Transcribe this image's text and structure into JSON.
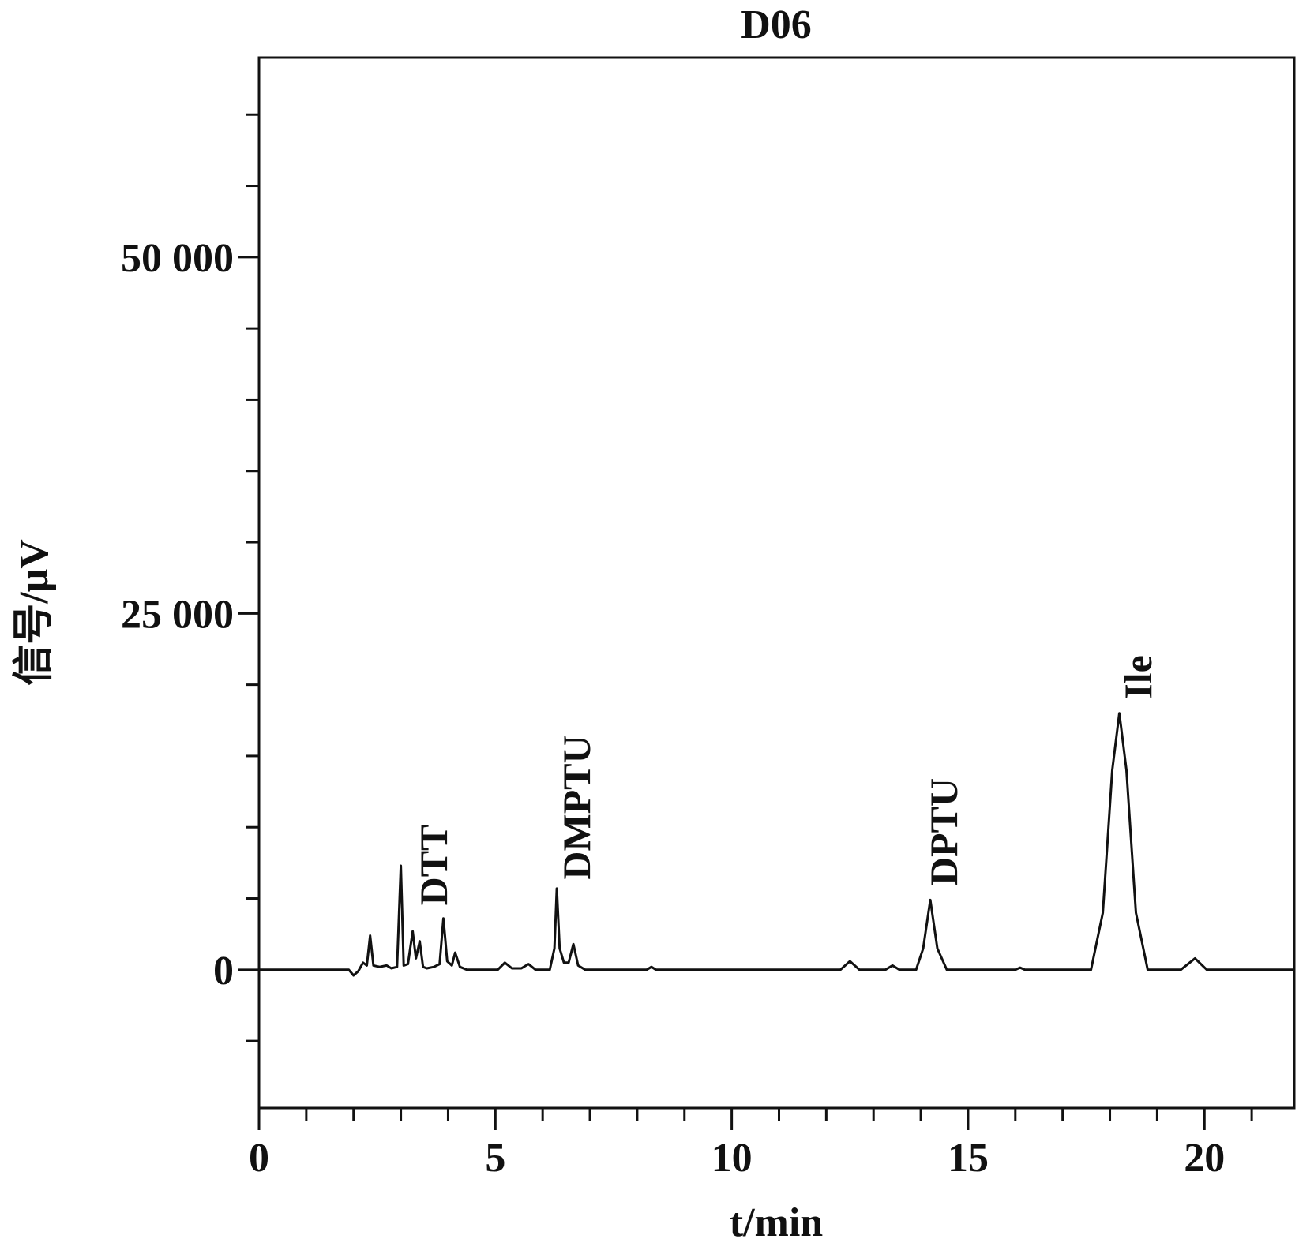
{
  "chart_data": {
    "type": "line",
    "title": "D06",
    "x_label": "t/min",
    "y_label": "信号/μV",
    "xlim": [
      0,
      21.9
    ],
    "ylim": [
      -9700,
      64000
    ],
    "xticks": [
      0,
      5,
      10,
      15,
      20
    ],
    "xminorticks": [
      1,
      2,
      3,
      4,
      6,
      7,
      8,
      9,
      11,
      12,
      13,
      14,
      16,
      17,
      18,
      19,
      21
    ],
    "yticks": [
      0,
      {
        "value": 25000,
        "label": "25 000"
      },
      {
        "value": 50000,
        "label": "50 000"
      }
    ],
    "yminorticks": [
      -5000,
      5000,
      10000,
      15000,
      20000,
      30000,
      35000,
      40000,
      45000,
      55000,
      60000
    ],
    "annotations": [
      "DTT",
      "DMPTU",
      "DPTU",
      "Ile"
    ],
    "series": [
      {
        "color": "#111111",
        "x": [
          0,
          1.9,
          2.0,
          2.1,
          2.2,
          2.28,
          2.35,
          2.42,
          2.55,
          2.7,
          2.8,
          2.92,
          3.0,
          3.06,
          3.15,
          3.25,
          3.32,
          3.4,
          3.47,
          3.55,
          3.7,
          3.82,
          3.9,
          3.98,
          4.08,
          4.15,
          4.25,
          4.4,
          5.05,
          5.2,
          5.35,
          5.55,
          5.7,
          5.85,
          6.15,
          6.25,
          6.3,
          6.36,
          6.45,
          6.55,
          6.65,
          6.75,
          6.9,
          8.2,
          8.3,
          8.4,
          12.3,
          12.5,
          12.7,
          13.25,
          13.4,
          13.55,
          13.9,
          14.05,
          14.2,
          14.35,
          14.55,
          16.0,
          16.1,
          16.2,
          17.6,
          17.85,
          18.05,
          18.2,
          18.35,
          18.55,
          18.8,
          19.5,
          19.8,
          20.05,
          21.9
        ],
        "values": [
          0,
          0,
          -400,
          -100,
          500,
          300,
          2400,
          300,
          200,
          300,
          100,
          200,
          7300,
          300,
          400,
          2700,
          800,
          2000,
          200,
          100,
          200,
          400,
          3600,
          600,
          300,
          1200,
          200,
          0,
          0,
          500,
          100,
          100,
          400,
          0,
          0,
          1500,
          5700,
          1500,
          500,
          500,
          1800,
          300,
          0,
          0,
          200,
          0,
          0,
          600,
          0,
          0,
          300,
          0,
          0,
          1500,
          4900,
          1500,
          0,
          0,
          150,
          0,
          0,
          4000,
          14000,
          18000,
          14000,
          4000,
          0,
          0,
          800,
          0,
          0
        ]
      }
    ]
  }
}
